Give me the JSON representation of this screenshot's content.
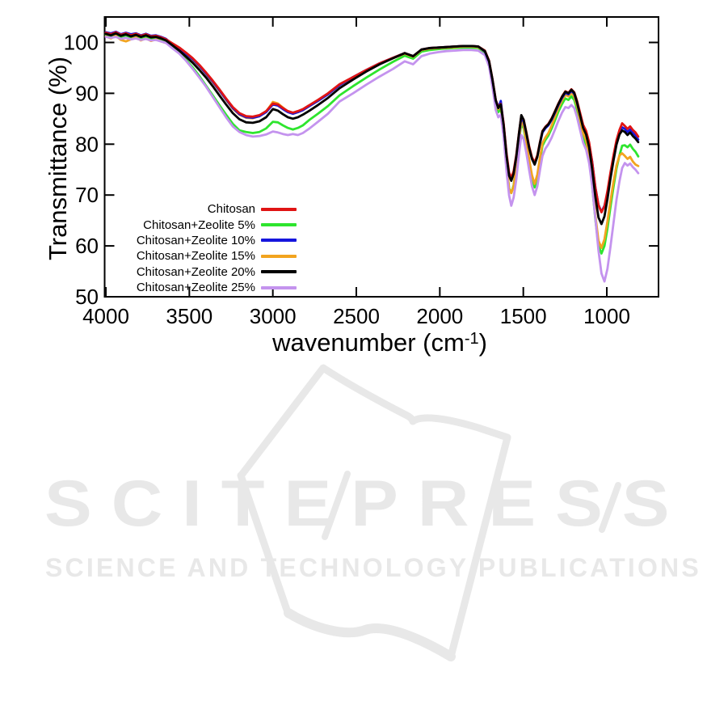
{
  "chart_data": {
    "type": "line",
    "title": "",
    "xlabel": "wavenumber (cm⁻¹)",
    "ylabel": "Transmittance (%)",
    "xlim": [
      4000,
      690
    ],
    "ylim": [
      50,
      104.9
    ],
    "x_axis_reversed": true,
    "grid": false,
    "legend_position": "inside-center-left",
    "x_ticks": [
      "4000",
      "3500",
      "3000",
      "2500",
      "2000",
      "1500",
      "1000"
    ],
    "y_ticks": [
      "50",
      "60",
      "70",
      "80",
      "90",
      "100"
    ],
    "x": [
      4000,
      3970,
      3940,
      3910,
      3880,
      3850,
      3820,
      3790,
      3760,
      3730,
      3700,
      3670,
      3640,
      3600,
      3560,
      3520,
      3480,
      3440,
      3400,
      3360,
      3320,
      3280,
      3240,
      3200,
      3160,
      3120,
      3080,
      3040,
      3000,
      2970,
      2940,
      2910,
      2880,
      2850,
      2820,
      2780,
      2730,
      2670,
      2600,
      2520,
      2440,
      2360,
      2280,
      2210,
      2160,
      2110,
      2060,
      2010,
      1960,
      1910,
      1860,
      1810,
      1770,
      1730,
      1705,
      1685,
      1665,
      1650,
      1635,
      1618,
      1600,
      1585,
      1572,
      1558,
      1542,
      1526,
      1512,
      1498,
      1482,
      1465,
      1448,
      1432,
      1416,
      1400,
      1385,
      1368,
      1350,
      1330,
      1310,
      1290,
      1268,
      1248,
      1230,
      1212,
      1195,
      1178,
      1160,
      1142,
      1124,
      1106,
      1088,
      1068,
      1050,
      1032,
      1014,
      996,
      978,
      960,
      942,
      924,
      908,
      892,
      876,
      860,
      844,
      828,
      812
    ],
    "series": [
      {
        "name": "Chitosan",
        "color": "#e01414",
        "values": [
          101.9,
          101.6,
          102.0,
          101.5,
          101.8,
          101.4,
          101.7,
          101.3,
          101.6,
          101.2,
          101.3,
          101.0,
          100.6,
          99.8,
          99.0,
          98.0,
          96.9,
          95.6,
          94.1,
          92.5,
          90.8,
          89.0,
          87.3,
          86.1,
          85.5,
          85.4,
          85.7,
          86.5,
          88.0,
          87.8,
          87.1,
          86.5,
          86.2,
          86.5,
          86.9,
          87.7,
          88.7,
          90.0,
          91.8,
          93.2,
          94.6,
          95.9,
          97.0,
          97.9,
          97.3,
          98.6,
          98.9,
          99.0,
          99.1,
          99.2,
          99.3,
          99.3,
          99.2,
          98.4,
          96.4,
          92.9,
          88.7,
          87.3,
          87.9,
          84.1,
          78.1,
          74.4,
          73.4,
          74.7,
          77.9,
          82.2,
          85.6,
          84.8,
          82.4,
          79.6,
          77.4,
          76.4,
          77.8,
          80.4,
          82.6,
          83.4,
          84.0,
          85.1,
          86.5,
          88.0,
          89.4,
          90.4,
          90.1,
          90.8,
          90.2,
          88.5,
          86.2,
          83.8,
          82.6,
          80.4,
          76.6,
          71.4,
          68.0,
          66.6,
          67.8,
          70.8,
          74.4,
          77.8,
          80.8,
          82.8,
          84.1,
          83.6,
          83.0,
          83.5,
          82.8,
          82.3,
          81.5
        ]
      },
      {
        "name": "Chitosan+Zeolite 5%",
        "color": "#2ee52e",
        "values": [
          101.5,
          101.2,
          101.6,
          101.1,
          101.4,
          101.0,
          101.3,
          100.9,
          101.2,
          100.8,
          100.9,
          100.6,
          100.2,
          99.1,
          98.0,
          96.6,
          95.1,
          93.4,
          91.5,
          89.6,
          87.7,
          85.8,
          84.0,
          82.7,
          82.4,
          82.2,
          82.4,
          83.1,
          84.4,
          84.3,
          83.7,
          83.2,
          82.9,
          83.2,
          83.7,
          84.8,
          86.0,
          87.5,
          89.6,
          91.4,
          93.1,
          94.7,
          96.2,
          97.4,
          96.8,
          98.2,
          98.5,
          98.7,
          98.8,
          98.9,
          99.0,
          99.0,
          98.9,
          98.0,
          95.9,
          92.2,
          87.8,
          86.3,
          87.0,
          82.7,
          75.7,
          71.3,
          70.4,
          71.9,
          75.9,
          80.6,
          84.0,
          83.1,
          80.2,
          76.6,
          73.4,
          71.5,
          73.4,
          76.8,
          79.7,
          80.8,
          81.7,
          83.1,
          84.7,
          86.4,
          87.9,
          89.0,
          88.7,
          89.4,
          88.7,
          86.8,
          84.2,
          81.4,
          79.9,
          77.1,
          72.1,
          65.1,
          60.0,
          58.5,
          60.0,
          63.4,
          67.6,
          71.6,
          75.2,
          77.8,
          79.7,
          79.8,
          79.4,
          79.9,
          79.1,
          78.5,
          77.6
        ]
      },
      {
        "name": "Chitosan+Zeolite 10%",
        "color": "#1616dd",
        "values": [
          102.0,
          101.8,
          102.1,
          101.6,
          101.9,
          101.6,
          101.8,
          101.4,
          101.7,
          101.3,
          101.4,
          101.1,
          100.7,
          99.6,
          98.8,
          97.8,
          96.7,
          95.4,
          93.9,
          92.3,
          90.6,
          88.8,
          87.1,
          85.9,
          85.3,
          85.2,
          85.5,
          86.3,
          87.8,
          87.6,
          86.9,
          86.3,
          86.0,
          86.3,
          86.7,
          87.5,
          88.5,
          89.8,
          91.6,
          93.2,
          94.6,
          95.9,
          97.0,
          97.9,
          97.3,
          98.6,
          98.9,
          99.0,
          99.1,
          99.2,
          99.3,
          99.3,
          99.2,
          98.2,
          96.2,
          92.7,
          88.5,
          87.1,
          88.5,
          83.8,
          77.8,
          74.1,
          73.1,
          74.4,
          77.5,
          81.8,
          85.2,
          84.4,
          82.1,
          79.3,
          77.1,
          76.1,
          77.5,
          80.1,
          82.3,
          83.1,
          83.7,
          84.8,
          86.2,
          87.7,
          89.1,
          90.1,
          89.8,
          90.5,
          89.9,
          88.1,
          85.8,
          83.4,
          82.2,
          80.0,
          76.7,
          71.5,
          68.1,
          66.7,
          67.9,
          70.3,
          73.9,
          77.3,
          80.3,
          82.3,
          83.3,
          83.0,
          82.4,
          82.9,
          82.2,
          81.7,
          80.9
        ]
      },
      {
        "name": "Chitosan+Zeolite 15%",
        "color": "#f2a41f",
        "values": [
          101.2,
          100.8,
          101.3,
          100.5,
          100.2,
          100.6,
          101.0,
          100.4,
          100.8,
          100.3,
          100.6,
          100.2,
          99.9,
          99.5,
          98.7,
          97.7,
          96.6,
          95.3,
          93.8,
          92.2,
          90.5,
          88.7,
          87.0,
          85.8,
          85.2,
          85.1,
          85.5,
          86.4,
          88.3,
          88.0,
          87.2,
          86.4,
          86.0,
          86.3,
          86.7,
          87.5,
          88.5,
          89.8,
          91.6,
          93.1,
          94.5,
          95.8,
          96.9,
          97.8,
          97.2,
          98.5,
          98.8,
          98.9,
          99.0,
          99.1,
          99.2,
          99.2,
          99.1,
          98.2,
          96.1,
          92.5,
          88.3,
          86.9,
          87.6,
          83.1,
          75.9,
          71.2,
          70.4,
          71.7,
          75.7,
          80.8,
          84.5,
          83.6,
          80.6,
          77.0,
          73.9,
          72.2,
          74.0,
          77.4,
          80.2,
          81.3,
          82.2,
          83.7,
          85.4,
          87.1,
          88.6,
          89.7,
          89.4,
          90.1,
          89.4,
          87.5,
          84.9,
          82.2,
          80.8,
          77.9,
          73.1,
          65.9,
          61.0,
          59.6,
          61.3,
          64.8,
          68.8,
          72.6,
          75.8,
          77.8,
          78.2,
          77.7,
          77.1,
          77.5,
          76.6,
          76.0,
          75.7
        ]
      },
      {
        "name": "Chitosan+Zeolite 20%",
        "color": "#000000",
        "values": [
          101.7,
          101.4,
          101.8,
          101.3,
          101.6,
          101.2,
          101.5,
          101.1,
          101.4,
          101.0,
          101.1,
          100.8,
          100.4,
          99.4,
          98.4,
          97.2,
          96.0,
          94.6,
          93.1,
          91.4,
          89.6,
          87.8,
          86.1,
          84.9,
          84.3,
          84.2,
          84.5,
          85.3,
          86.9,
          86.6,
          85.9,
          85.3,
          85.0,
          85.3,
          85.8,
          86.6,
          87.7,
          89.1,
          91.0,
          92.7,
          94.3,
          95.7,
          96.9,
          97.9,
          97.3,
          98.6,
          98.9,
          99.0,
          99.1,
          99.2,
          99.3,
          99.3,
          99.2,
          98.3,
          96.3,
          92.8,
          88.6,
          87.1,
          87.8,
          83.8,
          77.6,
          73.8,
          72.8,
          74.2,
          77.6,
          82.1,
          85.7,
          84.8,
          82.2,
          79.3,
          77.1,
          76.0,
          77.5,
          80.3,
          82.5,
          83.3,
          83.9,
          85.0,
          86.4,
          87.9,
          89.3,
          90.3,
          90.0,
          90.7,
          90.1,
          88.2,
          85.7,
          83.2,
          81.9,
          79.4,
          75.2,
          69.6,
          65.6,
          64.3,
          65.8,
          69.2,
          73.2,
          76.8,
          79.9,
          81.9,
          82.7,
          82.4,
          81.8,
          82.3,
          81.6,
          81.1,
          80.4
        ]
      },
      {
        "name": "Chitosan+Zeolite 25%",
        "color": "#c493ee",
        "values": [
          101.1,
          100.9,
          101.1,
          100.7,
          100.9,
          100.6,
          100.8,
          100.5,
          100.7,
          100.4,
          100.5,
          100.2,
          99.9,
          98.8,
          97.8,
          96.4,
          94.8,
          93.1,
          91.3,
          89.3,
          87.3,
          85.3,
          83.5,
          82.4,
          81.8,
          81.5,
          81.6,
          81.9,
          82.5,
          82.3,
          82.0,
          81.8,
          82.0,
          81.8,
          82.2,
          83.1,
          84.4,
          86.0,
          88.4,
          90.0,
          91.7,
          93.3,
          94.8,
          96.3,
          95.7,
          97.3,
          97.8,
          98.1,
          98.3,
          98.4,
          98.5,
          98.5,
          98.4,
          97.5,
          95.3,
          91.3,
          86.7,
          85.3,
          85.8,
          81.4,
          74.5,
          69.9,
          67.9,
          69.5,
          73.1,
          78.1,
          81.8,
          81.0,
          78.3,
          74.9,
          71.7,
          70.0,
          71.7,
          74.9,
          77.7,
          79.1,
          80.0,
          81.3,
          82.9,
          84.6,
          86.2,
          87.3,
          87.1,
          87.7,
          87.1,
          85.3,
          82.8,
          80.3,
          78.9,
          76.3,
          71.9,
          65.3,
          59.1,
          54.6,
          53.0,
          55.5,
          59.8,
          64.5,
          69.1,
          72.7,
          75.3,
          76.3,
          75.8,
          76.2,
          75.5,
          75.0,
          74.3
        ]
      }
    ]
  },
  "axis": {
    "ylabel": "Transmittance (%)",
    "xlabel_prefix": "wavenumber (cm",
    "xlabel_sup": "-1",
    "xlabel_suffix": ")"
  },
  "watermark": {
    "title": "SCITEPRESS",
    "subtitle": "SCIENCE AND TECHNOLOGY PUBLICATIONS",
    "color": "#e8e8e8"
  }
}
